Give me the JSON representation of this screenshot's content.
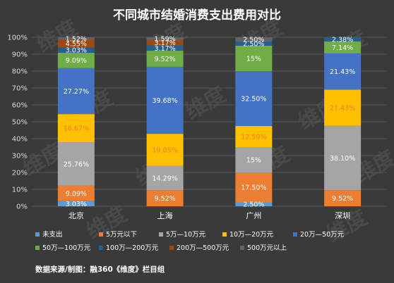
{
  "chart_data": {
    "type": "bar",
    "stacked": true,
    "title": "不同城市结婚消费支出费用对比",
    "categories": [
      "北京",
      "上海",
      "广州",
      "深圳"
    ],
    "ylim": [
      0,
      100
    ],
    "yticks": [
      "0%",
      "10%",
      "20%",
      "30%",
      "40%",
      "50%",
      "60%",
      "70%",
      "80%",
      "90%",
      "100%"
    ],
    "grid": true,
    "legend_position": "bottom",
    "series": [
      {
        "name": "未支出",
        "color": "#5b9bd5",
        "values": [
          3.03,
          0,
          2.5,
          0
        ],
        "labels": [
          "3.03%",
          "",
          "2.50%",
          ""
        ]
      },
      {
        "name": "5万元以下",
        "color": "#ed7d31",
        "values": [
          9.09,
          9.52,
          17.5,
          9.52
        ],
        "labels": [
          "9.09%",
          "9.52%",
          "17.50%",
          "9.52%"
        ]
      },
      {
        "name": "5万—10万元",
        "color": "#a5a5a5",
        "values": [
          25.76,
          14.29,
          15,
          38.1
        ],
        "labels": [
          "25.76%",
          "14.29%",
          "15%",
          "38.10%"
        ]
      },
      {
        "name": "10万—20万元",
        "color": "#ffc000",
        "values": [
          16.67,
          19.05,
          12.5,
          21.43
        ],
        "labels": [
          "16.67%",
          "19.05%",
          "12.50%",
          "21.43%"
        ]
      },
      {
        "name": "20万—50万元",
        "color": "#4472c4",
        "values": [
          27.27,
          39.68,
          32.5,
          21.43
        ],
        "labels": [
          "27.27%",
          "39.68%",
          "32.50%",
          "21.43%"
        ]
      },
      {
        "name": "50万—100万元",
        "color": "#70ad47",
        "values": [
          9.09,
          9.52,
          15,
          7.14
        ],
        "labels": [
          "9.09%",
          "9.52%",
          "15%",
          "7.14%"
        ]
      },
      {
        "name": "100万—200万元",
        "color": "#255e91",
        "values": [
          3.03,
          3.17,
          2.5,
          2.38
        ],
        "labels": [
          "3.03%",
          "3.17%",
          "2.50%",
          "2.38%"
        ]
      },
      {
        "name": "200万—500万元",
        "color": "#9e480e",
        "values": [
          4.55,
          3.17,
          0,
          0
        ],
        "labels": [
          "4.55%",
          "3.17%",
          "",
          ""
        ]
      },
      {
        "name": "500万元以上",
        "color": "#636363",
        "values": [
          1.52,
          1.59,
          2.5,
          0
        ],
        "labels": [
          "1.52%",
          "1.59%",
          "2.50%",
          ""
        ]
      }
    ],
    "source": "数据来源/制图：融360《维度》栏目组",
    "watermark": "维度"
  }
}
